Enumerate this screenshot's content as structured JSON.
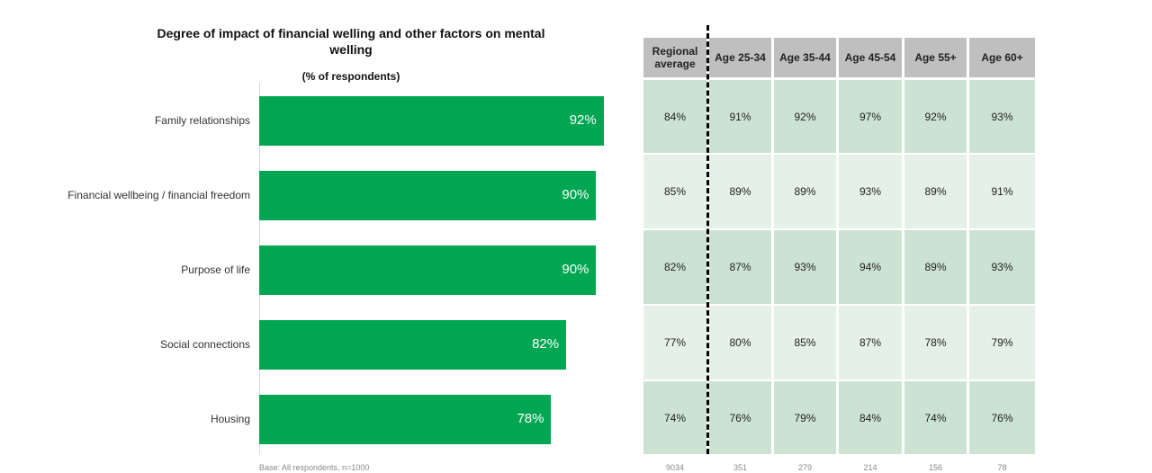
{
  "chart_data": [
    {
      "type": "bar",
      "orientation": "horizontal",
      "title": "Degree of impact of financial welling and other factors on mental welling",
      "subtitle": "(% of respondents)",
      "categories": [
        "Family relationships",
        "Financial wellbeing / financial freedom",
        "Purpose of life",
        "Social connections",
        "Housing"
      ],
      "values": [
        92,
        90,
        90,
        82,
        78
      ],
      "data_labels": [
        "92%",
        "90%",
        "90%",
        "82%",
        "78%"
      ],
      "xlim": [
        0,
        100
      ],
      "grid": false,
      "bar_color": "#00a651",
      "footnote": "Base: All respondents, n=1000"
    },
    {
      "type": "table",
      "columns": [
        "Regional average",
        "Age 25-34",
        "Age 35-44",
        "Age 45-54",
        "Age 55+",
        "Age 60+"
      ],
      "rows": [
        [
          "84%",
          "91%",
          "92%",
          "97%",
          "92%",
          "93%"
        ],
        [
          "85%",
          "89%",
          "89%",
          "93%",
          "89%",
          "91%"
        ],
        [
          "82%",
          "87%",
          "93%",
          "94%",
          "89%",
          "93%"
        ],
        [
          "77%",
          "80%",
          "85%",
          "87%",
          "78%",
          "79%"
        ],
        [
          "74%",
          "76%",
          "79%",
          "84%",
          "74%",
          "76%"
        ]
      ],
      "base_counts": [
        "9034",
        "351",
        "279",
        "214",
        "156",
        "78"
      ],
      "header_color": "#bfbfbf",
      "row_colors": [
        "#cce3d3",
        "#e5f0e8"
      ]
    }
  ]
}
